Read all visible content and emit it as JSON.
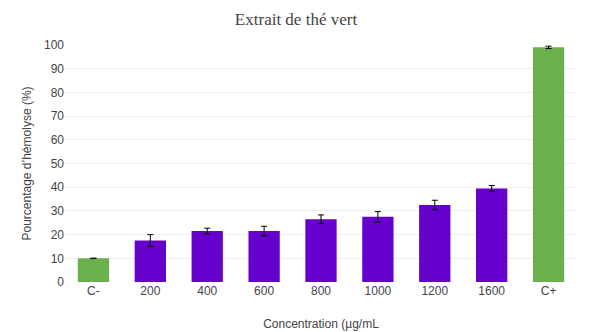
{
  "chart_data": {
    "type": "bar",
    "title": "Extrait de thé vert",
    "xlabel": "Concentration (µg/mL",
    "ylabel": "Pourcentage d’hémolyse (%)",
    "categories": [
      "C-",
      "200",
      "400",
      "600",
      "800",
      "1000",
      "1200",
      "1600",
      "C+"
    ],
    "values": [
      10.0,
      17.5,
      21.5,
      21.5,
      26.5,
      27.5,
      32.5,
      39.5,
      99.0
    ],
    "errors": [
      0.0,
      2.5,
      1.2,
      2.0,
      1.8,
      2.2,
      2.0,
      1.2,
      0.5
    ],
    "colors": [
      "#6ab04c",
      "#6600cc",
      "#6600cc",
      "#6600cc",
      "#6600cc",
      "#6600cc",
      "#6600cc",
      "#6600cc",
      "#6ab04c"
    ],
    "ylim": [
      0,
      100
    ],
    "yticks": [
      0,
      10,
      20,
      30,
      40,
      50,
      60,
      70,
      80,
      90,
      100
    ],
    "grid": true
  }
}
